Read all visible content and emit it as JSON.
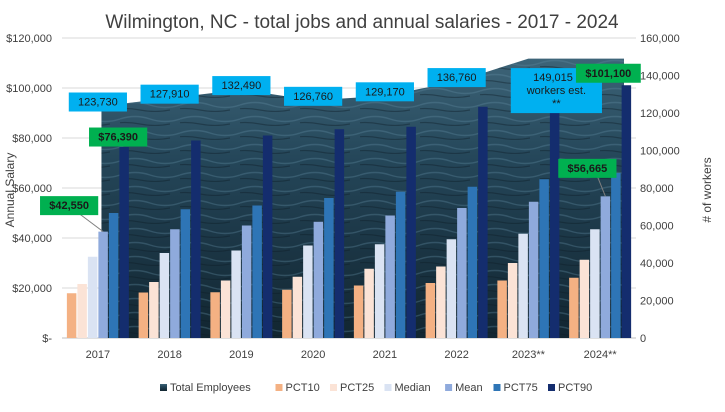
{
  "chart_data": {
    "type": "bar",
    "title": "Wilmington, NC - total jobs and annual salaries - 2017 - 2024",
    "categories": [
      "2017",
      "2018",
      "2019",
      "2020",
      "2021",
      "2022",
      "2023**",
      "2024**"
    ],
    "ylabel": "Annual Salary",
    "y2label": "# of workers",
    "ylim": [
      0,
      120000
    ],
    "y2lim": [
      0,
      160000
    ],
    "y_ticks": [
      "$-",
      "$20,000",
      "$40,000",
      "$60,000",
      "$80,000",
      "$100,000",
      "$120,000"
    ],
    "y2_ticks": [
      "0",
      "20,000",
      "40,000",
      "60,000",
      "80,000",
      "100,000",
      "120,000",
      "140,000",
      "160,000"
    ],
    "grid": true,
    "legend_position": "bottom",
    "area_series": {
      "name": "Total Employees",
      "axis": "secondary",
      "values": [
        123730,
        127910,
        132490,
        126760,
        129170,
        136760,
        149015,
        149015
      ]
    },
    "series": [
      {
        "name": "PCT10",
        "color": "#f4b183",
        "values": [
          17900,
          18200,
          18300,
          19300,
          21000,
          22000,
          23000,
          24100
        ]
      },
      {
        "name": "PCT25",
        "color": "#fbe3d6",
        "values": [
          21600,
          22400,
          23000,
          24500,
          27700,
          28600,
          30000,
          31300
        ]
      },
      {
        "name": "Median",
        "color": "#dae3f3",
        "values": [
          32500,
          34000,
          35000,
          37000,
          37500,
          39500,
          41700,
          43500
        ]
      },
      {
        "name": "Mean",
        "color": "#8faadc",
        "values": [
          42550,
          43500,
          45000,
          46500,
          49000,
          52000,
          54500,
          56665
        ]
      },
      {
        "name": "PCT75",
        "color": "#2e75b6",
        "values": [
          50000,
          51500,
          53000,
          56000,
          58500,
          60500,
          63500,
          66000
        ]
      },
      {
        "name": "PCT90",
        "color": "#142d6e",
        "values": [
          76390,
          79000,
          81000,
          83500,
          84500,
          92500,
          97000,
          101100
        ]
      }
    ],
    "annotations": {
      "employees": [
        {
          "category": "2017",
          "label": "123,730"
        },
        {
          "category": "2018",
          "label": "127,910"
        },
        {
          "category": "2019",
          "label": "132,490"
        },
        {
          "category": "2020",
          "label": "126,760"
        },
        {
          "category": "2021",
          "label": "129,170"
        },
        {
          "category": "2022",
          "label": "136,760"
        },
        {
          "category": "2023**",
          "label_lines": [
            "149,015 -",
            "workers est.",
            "**"
          ]
        }
      ],
      "salary": [
        {
          "category": "2017",
          "series": "Mean",
          "label": "$42,550"
        },
        {
          "category": "2017",
          "series": "PCT90",
          "label": "$76,390"
        },
        {
          "category": "2024**",
          "series": "Mean",
          "label": "$56,665"
        },
        {
          "category": "2024**",
          "series": "PCT90",
          "label": "$101,100"
        }
      ]
    },
    "colors": {
      "area": "#2e4a5c",
      "callout_blue": "#00b0f0",
      "callout_green": "#00b050",
      "grid": "#d9d9d9"
    }
  }
}
